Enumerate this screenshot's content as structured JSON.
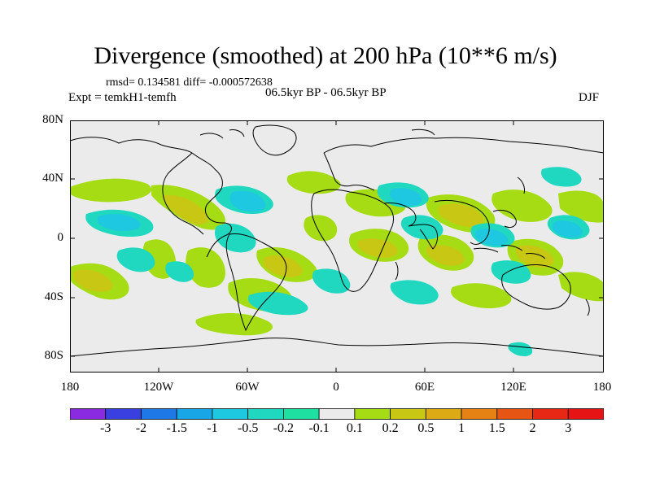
{
  "title": "Divergence (smoothed) at 200 hPa (10**6 m/s)",
  "stats": "rmsd= 0.134581  diff= -0.000572638",
  "experiment": "Expt = temkH1-temfh",
  "period": "06.5kyr BP - 06.5kyr BP",
  "season": "DJF",
  "lat_labels": [
    "80N",
    "40N",
    "0",
    "40S",
    "80S"
  ],
  "lon_labels": [
    "180",
    "120W",
    "60W",
    "0",
    "60E",
    "120E",
    "180"
  ],
  "colorbar": {
    "labels": [
      "-3",
      "-2",
      "-1.5",
      "-1",
      "-0.5",
      "-0.2",
      "-0.1",
      "0.1",
      "0.2",
      "0.5",
      "1",
      "1.5",
      "2",
      "3"
    ],
    "colors": [
      "#8a2be2",
      "#3a3fe0",
      "#1e78e6",
      "#18a6e6",
      "#1ec8e0",
      "#20d8c0",
      "#1ee0a0",
      "#ebebeb",
      "#a6dc14",
      "#c8c814",
      "#dcaa14",
      "#e68214",
      "#e65514",
      "#e62814",
      "#e61414"
    ]
  },
  "field_colors": {
    "background": "#ebebeb",
    "neg_weak": "#1ee0a0",
    "neg_mid": "#1ec8e0",
    "pos_weak": "#a6dc14",
    "pos_mid": "#c8c814"
  }
}
